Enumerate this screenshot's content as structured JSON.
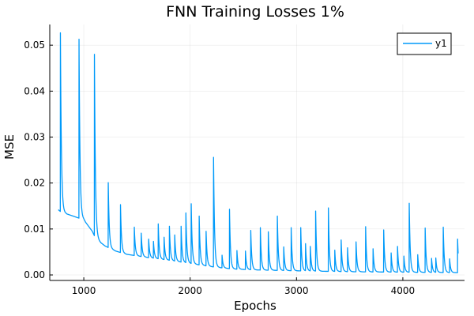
{
  "chart_data": {
    "type": "line",
    "title": "FNN Training Losses 1%",
    "xlabel": "Epochs",
    "ylabel": "MSE",
    "xlim": [
      680,
      4580
    ],
    "ylim": [
      -0.0012,
      0.0545
    ],
    "x_ticks": [
      1000,
      2000,
      3000,
      4000
    ],
    "x_tick_labels": [
      "1000",
      "2000",
      "3000",
      "4000"
    ],
    "y_ticks": [
      0.0,
      0.01,
      0.02,
      0.03,
      0.04,
      0.05
    ],
    "y_tick_labels": [
      "0.00",
      "0.01",
      "0.02",
      "0.03",
      "0.04",
      "0.05"
    ],
    "grid": true,
    "legend": "top-right",
    "colors": {
      "y1": "#009AFA"
    },
    "series": [
      {
        "name": "y1",
        "x_start": 760,
        "x_end": 4520,
        "baseline_points": [
          [
            760,
            0.0142
          ],
          [
            780,
            0.0138
          ],
          [
            800,
            0.0136
          ],
          [
            900,
            0.0128
          ],
          [
            1000,
            0.012
          ],
          [
            1080,
            0.0095
          ],
          [
            1100,
            0.0085
          ],
          [
            1150,
            0.0072
          ],
          [
            1200,
            0.0063
          ],
          [
            1300,
            0.0052
          ],
          [
            1400,
            0.0045
          ],
          [
            1600,
            0.0038
          ],
          [
            1800,
            0.0032
          ],
          [
            2000,
            0.0025
          ],
          [
            2200,
            0.0018
          ],
          [
            2400,
            0.0013
          ],
          [
            2600,
            0.0011
          ],
          [
            3000,
            0.0009
          ],
          [
            3500,
            0.0007
          ],
          [
            4000,
            0.0006
          ],
          [
            4520,
            0.0005
          ]
        ],
        "spikes": [
          [
            780,
            0.0527
          ],
          [
            955,
            0.0513
          ],
          [
            1100,
            0.048
          ],
          [
            1230,
            0.0201
          ],
          [
            1345,
            0.0153
          ],
          [
            1475,
            0.0104
          ],
          [
            1540,
            0.0091
          ],
          [
            1610,
            0.0078
          ],
          [
            1655,
            0.0073
          ],
          [
            1700,
            0.0111
          ],
          [
            1755,
            0.0082
          ],
          [
            1805,
            0.0106
          ],
          [
            1855,
            0.0087
          ],
          [
            1915,
            0.0106
          ],
          [
            1960,
            0.0135
          ],
          [
            2010,
            0.0155
          ],
          [
            2085,
            0.0128
          ],
          [
            2150,
            0.0095
          ],
          [
            2220,
            0.0256
          ],
          [
            2300,
            0.0043
          ],
          [
            2370,
            0.0143
          ],
          [
            2440,
            0.0053
          ],
          [
            2520,
            0.0052
          ],
          [
            2570,
            0.0097
          ],
          [
            2660,
            0.0103
          ],
          [
            2735,
            0.0094
          ],
          [
            2820,
            0.0128
          ],
          [
            2880,
            0.0061
          ],
          [
            2950,
            0.0103
          ],
          [
            3040,
            0.0103
          ],
          [
            3085,
            0.0068
          ],
          [
            3130,
            0.0062
          ],
          [
            3180,
            0.0139
          ],
          [
            3300,
            0.0146
          ],
          [
            3360,
            0.0054
          ],
          [
            3420,
            0.0076
          ],
          [
            3480,
            0.0059
          ],
          [
            3560,
            0.0072
          ],
          [
            3650,
            0.0105
          ],
          [
            3720,
            0.0057
          ],
          [
            3820,
            0.0098
          ],
          [
            3890,
            0.0048
          ],
          [
            3950,
            0.0062
          ],
          [
            4010,
            0.0041
          ],
          [
            4060,
            0.0156
          ],
          [
            4140,
            0.0044
          ],
          [
            4210,
            0.0102
          ],
          [
            4270,
            0.0036
          ],
          [
            4310,
            0.0037
          ],
          [
            4380,
            0.0104
          ],
          [
            4440,
            0.0035
          ],
          [
            4515,
            0.0078
          ]
        ]
      }
    ]
  }
}
